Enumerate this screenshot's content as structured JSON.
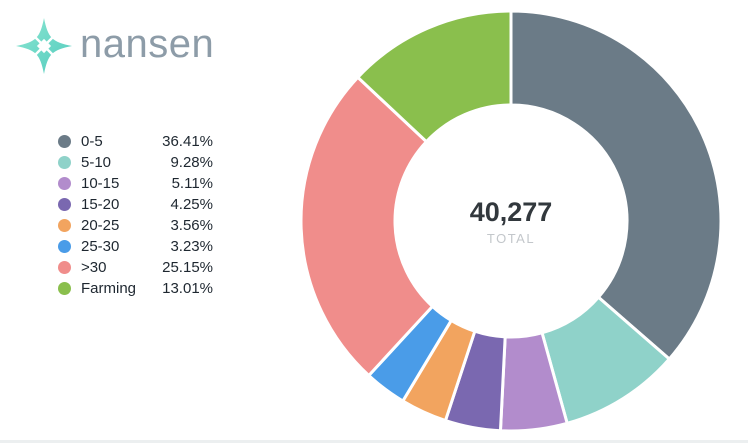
{
  "logo": {
    "text": "nansen",
    "text_color": "#8d9ca8",
    "icon_color_start": "#8ce6d2",
    "icon_color_end": "#52cbbd"
  },
  "chart_data": {
    "type": "pie",
    "donut": true,
    "title": "",
    "legend_position": "left",
    "start_angle_deg": 0,
    "direction": "clockwise",
    "categories": [
      "0-5",
      "5-10",
      "10-15",
      "15-20",
      "20-25",
      "25-30",
      ">30",
      "Farming"
    ],
    "values": [
      36.41,
      9.28,
      5.11,
      4.25,
      3.56,
      3.23,
      25.15,
      13.01
    ],
    "value_labels": [
      "36.41%",
      "9.28%",
      "5.11%",
      "4.25%",
      "3.56%",
      "3.23%",
      "25.15%",
      "13.01%"
    ],
    "colors": [
      "#6b7b87",
      "#8fd2c9",
      "#b28ccc",
      "#7a68b0",
      "#f2a45f",
      "#4a9ce8",
      "#f08d8b",
      "#8abf4d"
    ],
    "center_value": "40,277",
    "center_label": "TOTAL"
  }
}
